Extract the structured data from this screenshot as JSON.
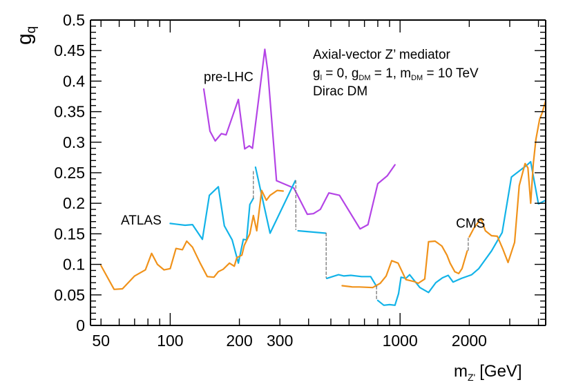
{
  "chart_data": {
    "type": "line",
    "title": "",
    "xlabel": "m",
    "xlabel_sub": "Z'",
    "xlabel_unit": "[GeV]",
    "ylabel": "g",
    "ylabel_sub": "q",
    "x_scale": "log",
    "xlim": [
      45,
      4300
    ],
    "ylim": [
      0,
      0.5
    ],
    "x_ticks": [
      50,
      100,
      200,
      300,
      1000,
      2000
    ],
    "x_tick_labels": [
      "50",
      "100",
      "200",
      "300",
      "1000",
      "2000"
    ],
    "y_ticks": [
      0,
      0.05,
      0.1,
      0.15,
      0.2,
      0.25,
      0.3,
      0.35,
      0.4,
      0.45,
      0.5
    ],
    "y_tick_labels": [
      "0",
      "0.05",
      "0.1",
      "0.15",
      "0.2",
      "0.25",
      "0.3",
      "0.35",
      "0.4",
      "0.45",
      "0.5"
    ],
    "legend_placement": "top-right",
    "annotation": {
      "line1": "Axial-vector Z’ mediator",
      "line2": {
        "g": "g",
        "l_sub": "l",
        "l_eq": " = 0, ",
        "dm_g": "g",
        "dm_sub": "DM",
        "dm_eq": " = 1, ",
        "m": "m",
        "m_sub": "DM",
        "m_eq": " = 10 TeV"
      },
      "line3": "Dirac DM"
    },
    "series": [
      {
        "name": "pre-LHC",
        "label": "pre-LHC",
        "label_at": [
          140,
          0.4
        ],
        "color": "#b444e6",
        "segments": [
          [
            [
              140,
              0.387
            ],
            [
              149,
              0.318
            ],
            [
              157,
              0.302
            ],
            [
              167,
              0.314
            ],
            [
              175,
              0.312
            ],
            [
              198,
              0.37
            ],
            [
              211,
              0.289
            ],
            [
              221,
              0.294
            ],
            [
              228,
              0.29
            ],
            [
              248,
              0.4
            ],
            [
              258,
              0.452
            ],
            [
              266,
              0.415
            ],
            [
              290,
              0.237
            ],
            [
              345,
              0.225
            ],
            [
              395,
              0.182
            ],
            [
              420,
              0.183
            ],
            [
              450,
              0.19
            ],
            [
              490,
              0.217
            ],
            [
              545,
              0.213
            ],
            [
              670,
              0.158
            ],
            [
              725,
              0.165
            ],
            [
              800,
              0.232
            ],
            [
              880,
              0.245
            ],
            [
              950,
              0.263
            ]
          ]
        ]
      },
      {
        "name": "ATLAS",
        "label": "ATLAS",
        "label_at": [
          61,
          0.165
        ],
        "color": "#12b3e8",
        "segments": [
          [
            [
              100,
              0.167
            ],
            [
              116,
              0.164
            ],
            [
              125,
              0.165
            ],
            [
              138,
              0.141
            ],
            [
              148,
              0.213
            ],
            [
              162,
              0.227
            ],
            [
              172,
              0.163
            ],
            [
              186,
              0.14
            ],
            [
              198,
              0.102
            ],
            [
              208,
              0.141
            ],
            [
              215,
              0.14
            ],
            [
              222,
              0.198
            ],
            [
              230,
              0.208
            ]
          ],
          [
            [
              235,
              0.259
            ],
            [
              272,
              0.151
            ],
            [
              350,
              0.237
            ]
          ],
          [
            [
              360,
              0.155
            ],
            [
              475,
              0.151
            ]
          ],
          [
            [
              480,
              0.077
            ],
            [
              540,
              0.083
            ],
            [
              570,
              0.081
            ],
            [
              610,
              0.082
            ],
            [
              680,
              0.08
            ],
            [
              745,
              0.08
            ],
            [
              790,
              0.064
            ]
          ],
          [
            [
              800,
              0.041
            ],
            [
              850,
              0.033
            ],
            [
              900,
              0.034
            ],
            [
              950,
              0.033
            ],
            [
              985,
              0.052
            ],
            [
              1010,
              0.079
            ],
            [
              1060,
              0.077
            ],
            [
              1100,
              0.083
            ],
            [
              1220,
              0.062
            ],
            [
              1330,
              0.054
            ],
            [
              1430,
              0.07
            ],
            [
              1530,
              0.078
            ],
            [
              1620,
              0.082
            ],
            [
              1700,
              0.071
            ],
            [
              1850,
              0.077
            ],
            [
              2050,
              0.083
            ],
            [
              2200,
              0.093
            ],
            [
              2500,
              0.122
            ],
            [
              2780,
              0.152
            ],
            [
              3050,
              0.243
            ],
            [
              3550,
              0.262
            ],
            [
              3700,
              0.268
            ],
            [
              4000,
              0.199
            ],
            [
              4300,
              0.205
            ]
          ]
        ]
      },
      {
        "name": "CMS",
        "label": "CMS",
        "label_at": [
          1750,
          0.16
        ],
        "color": "#f0921a",
        "segments": [
          [
            [
              50,
              0.098
            ],
            [
              57,
              0.059
            ],
            [
              62,
              0.06
            ],
            [
              70,
              0.081
            ],
            [
              78,
              0.091
            ],
            [
              83,
              0.118
            ],
            [
              88,
              0.1
            ],
            [
              94,
              0.091
            ],
            [
              100,
              0.093
            ],
            [
              106,
              0.126
            ],
            [
              113,
              0.124
            ],
            [
              118,
              0.138
            ],
            [
              125,
              0.128
            ],
            [
              135,
              0.102
            ],
            [
              145,
              0.08
            ],
            [
              155,
              0.079
            ],
            [
              162,
              0.088
            ],
            [
              170,
              0.092
            ],
            [
              181,
              0.102
            ],
            [
              190,
              0.097
            ],
            [
              195,
              0.111
            ],
            [
              205,
              0.115
            ],
            [
              210,
              0.131
            ],
            [
              222,
              0.15
            ],
            [
              230,
              0.18
            ],
            [
              238,
              0.155
            ],
            [
              250,
              0.221
            ],
            [
              262,
              0.205
            ],
            [
              272,
              0.213
            ],
            [
              282,
              0.217
            ],
            [
              292,
              0.221
            ],
            [
              310,
              0.22
            ]
          ],
          [
            [
              560,
              0.065
            ],
            [
              620,
              0.063
            ],
            [
              665,
              0.063
            ],
            [
              760,
              0.062
            ],
            [
              820,
              0.069
            ],
            [
              870,
              0.081
            ],
            [
              920,
              0.106
            ],
            [
              980,
              0.102
            ],
            [
              1060,
              0.075
            ],
            [
              1150,
              0.072
            ],
            [
              1200,
              0.069
            ],
            [
              1280,
              0.076
            ],
            [
              1330,
              0.137
            ],
            [
              1420,
              0.138
            ],
            [
              1520,
              0.13
            ],
            [
              1600,
              0.115
            ],
            [
              1650,
              0.102
            ],
            [
              1730,
              0.088
            ],
            [
              1800,
              0.085
            ],
            [
              1860,
              0.093
            ],
            [
              1960,
              0.122
            ]
          ],
          [
            [
              2000,
              0.145
            ],
            [
              2100,
              0.16
            ],
            [
              2250,
              0.175
            ],
            [
              2350,
              0.155
            ],
            [
              2500,
              0.147
            ],
            [
              2650,
              0.146
            ],
            [
              2800,
              0.125
            ],
            [
              2950,
              0.103
            ],
            [
              3150,
              0.136
            ],
            [
              3300,
              0.229
            ],
            [
              3500,
              0.265
            ],
            [
              3600,
              0.258
            ],
            [
              3700,
              0.2
            ],
            [
              3800,
              0.265
            ],
            [
              3900,
              0.305
            ],
            [
              4050,
              0.338
            ],
            [
              4150,
              0.348
            ],
            [
              4300,
              0.368
            ]
          ]
        ]
      },
      {
        "name": "connectors",
        "color": "#777777",
        "dashed": true,
        "segments": [
          [
            [
              230,
              0.208
            ],
            [
              230,
              0.253
            ]
          ],
          [
            [
              352,
              0.237
            ],
            [
              352,
              0.157
            ]
          ],
          [
            [
              477,
              0.151
            ],
            [
              477,
              0.078
            ]
          ],
          [
            [
              790,
              0.064
            ],
            [
              790,
              0.043
            ]
          ],
          [
            [
              1980,
              0.123
            ],
            [
              1980,
              0.143
            ]
          ]
        ]
      }
    ]
  }
}
